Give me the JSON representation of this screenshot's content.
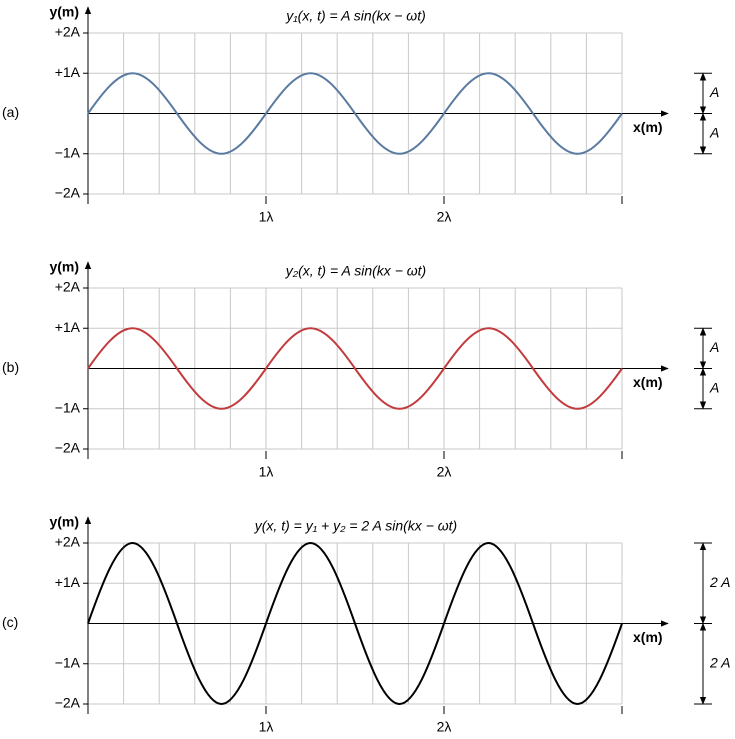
{
  "chart_data": [
    {
      "type": "line",
      "panel_label": "(a)",
      "title": "y₁(x, t) = A sin(kx − ωt)",
      "y_label": "y(m)",
      "x_label": "x(m)",
      "color": "#5a7aa1",
      "x": [
        0,
        0.25,
        0.5,
        0.75,
        1,
        1.25,
        1.5,
        1.75,
        2,
        2.25,
        2.5,
        2.75,
        3
      ],
      "values": [
        0,
        1,
        0,
        -1,
        0,
        1,
        0,
        -1,
        0,
        1,
        0,
        -1,
        0
      ],
      "xlim": [
        0,
        3
      ],
      "ylim": [
        -2,
        2
      ],
      "xticks": [
        {
          "value": 1,
          "label": "1λ"
        },
        {
          "value": 2,
          "label": "2λ"
        }
      ],
      "yticks": [
        {
          "value": 2,
          "label": "+2A"
        },
        {
          "value": 1,
          "label": "+1A"
        },
        {
          "value": -1,
          "label": "−1A"
        },
        {
          "value": -2,
          "label": "−2A"
        }
      ],
      "grid": true,
      "annotations": [
        {
          "text": "A",
          "from": 0,
          "to": 1
        },
        {
          "text": "A",
          "from": 0,
          "to": -1
        }
      ]
    },
    {
      "type": "line",
      "panel_label": "(b)",
      "title": "y₂(x, t) = A sin(kx − ωt)",
      "y_label": "y(m)",
      "x_label": "x(m)",
      "color": "#c23b3d",
      "x": [
        0,
        0.25,
        0.5,
        0.75,
        1,
        1.25,
        1.5,
        1.75,
        2,
        2.25,
        2.5,
        2.75,
        3
      ],
      "values": [
        0,
        1,
        0,
        -1,
        0,
        1,
        0,
        -1,
        0,
        1,
        0,
        -1,
        0
      ],
      "xlim": [
        0,
        3
      ],
      "ylim": [
        -2,
        2
      ],
      "xticks": [
        {
          "value": 1,
          "label": "1λ"
        },
        {
          "value": 2,
          "label": "2λ"
        }
      ],
      "yticks": [
        {
          "value": 2,
          "label": "+2A"
        },
        {
          "value": 1,
          "label": "+1A"
        },
        {
          "value": -1,
          "label": "−1A"
        },
        {
          "value": -2,
          "label": "−2A"
        }
      ],
      "grid": true,
      "annotations": [
        {
          "text": "A",
          "from": 0,
          "to": 1
        },
        {
          "text": "A",
          "from": 0,
          "to": -1
        }
      ]
    },
    {
      "type": "line",
      "panel_label": "(c)",
      "title": "y(x, t) = y₁ + y₂ = 2 A sin(kx − ωt)",
      "y_label": "y(m)",
      "x_label": "x(m)",
      "color": "#000000",
      "x": [
        0,
        0.25,
        0.5,
        0.75,
        1,
        1.25,
        1.5,
        1.75,
        2,
        2.25,
        2.5,
        2.75,
        3
      ],
      "values": [
        0,
        2,
        0,
        -2,
        0,
        2,
        0,
        -2,
        0,
        2,
        0,
        -2,
        0
      ],
      "xlim": [
        0,
        3
      ],
      "ylim": [
        -2,
        2
      ],
      "xticks": [
        {
          "value": 1,
          "label": "1λ"
        },
        {
          "value": 2,
          "label": "2λ"
        }
      ],
      "yticks": [
        {
          "value": 2,
          "label": "+2A"
        },
        {
          "value": 1,
          "label": "+1A"
        },
        {
          "value": -1,
          "label": "−1A"
        },
        {
          "value": -2,
          "label": "−2A"
        }
      ],
      "grid": true,
      "annotations": [
        {
          "text": "2 A",
          "from": 0,
          "to": 2
        },
        {
          "text": "2 A",
          "from": 0,
          "to": -2
        }
      ]
    }
  ]
}
